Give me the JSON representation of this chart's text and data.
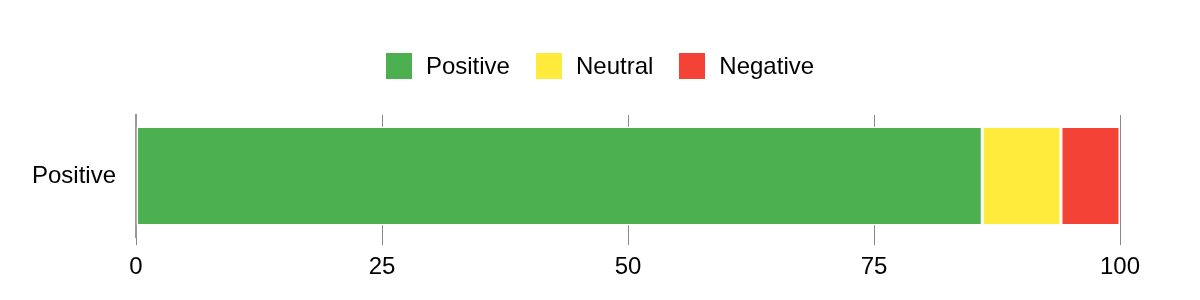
{
  "chart_data": {
    "type": "bar",
    "orientation": "horizontal",
    "stacked": true,
    "categories": [
      "Positive"
    ],
    "series": [
      {
        "name": "Positive",
        "color": "#4caf50",
        "values": [
          86
        ]
      },
      {
        "name": "Neutral",
        "color": "#ffeb3b",
        "values": [
          8
        ]
      },
      {
        "name": "Negative",
        "color": "#f44336",
        "values": [
          6
        ]
      }
    ],
    "xlim": [
      0,
      100
    ],
    "xticks": [
      0,
      25,
      50,
      75,
      100
    ],
    "grid": "x",
    "legend": "top"
  }
}
